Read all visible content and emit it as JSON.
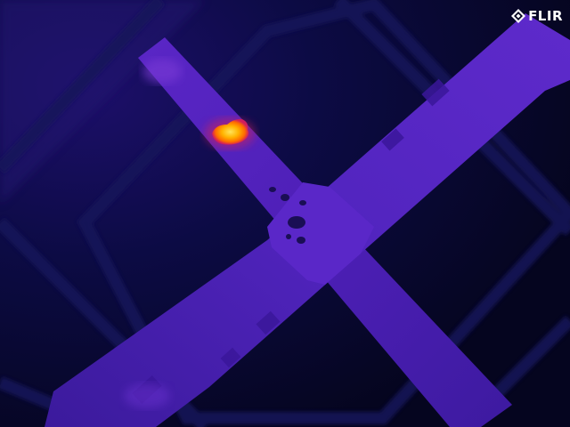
{
  "brand": {
    "name": "FLIR"
  },
  "image": {
    "kind": "thermal-infrared",
    "palette": [
      "#05051f",
      "#0b0b45",
      "#2a1380",
      "#4a22b8",
      "#6f2fd3",
      "#d9205e",
      "#ff6a00",
      "#ffb400",
      "#ffe060"
    ]
  }
}
